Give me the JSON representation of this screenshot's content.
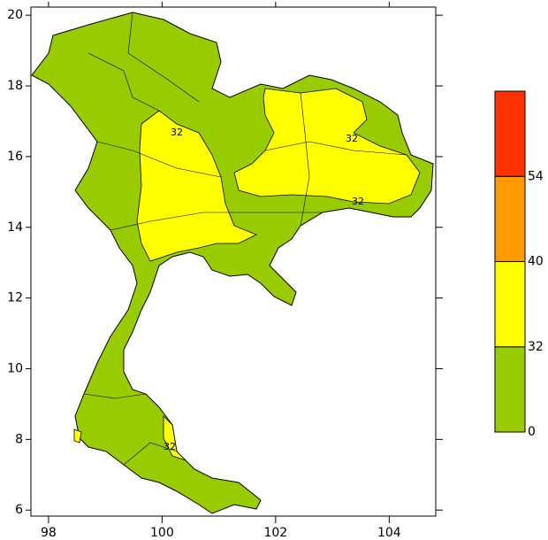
{
  "chart_data": {
    "type": "contour-map",
    "xlim": [
      97.69,
      104.82
    ],
    "ylim": [
      5.83,
      20.23
    ],
    "xticks": [
      98,
      100,
      102,
      104
    ],
    "yticks": [
      6,
      8,
      10,
      12,
      14,
      16,
      18,
      20
    ],
    "contour_labels": [
      "32",
      "32",
      "32",
      "32"
    ],
    "colorbar": {
      "levels": [
        0,
        32,
        40,
        54
      ],
      "colors": [
        "#99cc00",
        "#ffff00",
        "#ff9900",
        "#ff3300"
      ]
    }
  }
}
